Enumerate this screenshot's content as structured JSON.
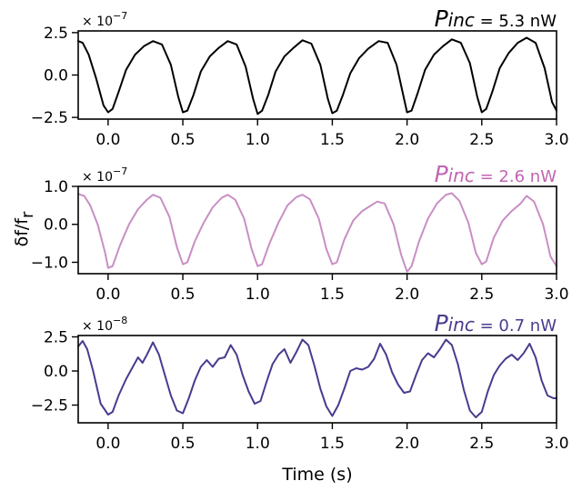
{
  "chart_data": [
    {
      "type": "line",
      "annotation": {
        "symbol": "P",
        "subscript": "inc",
        "value_text": " = 5.3 nW"
      },
      "multiplier": {
        "base": "× 10",
        "exponent": "−7"
      },
      "color": "#000000",
      "xlim": [
        -0.2,
        3.0
      ],
      "ylim": [
        -2.6,
        2.6
      ],
      "xticks": [
        0.0,
        0.5,
        1.0,
        1.5,
        2.0,
        2.5,
        3.0
      ],
      "xtick_labels": [
        "0.0",
        "0.5",
        "1.0",
        "1.5",
        "2.0",
        "2.5",
        "3.0"
      ],
      "yticks": [
        2.5,
        0.0,
        -2.5
      ],
      "ytick_labels": [
        "2.5",
        "0.0",
        "−2.5"
      ],
      "x": [
        -0.2,
        -0.17,
        -0.13,
        -0.08,
        -0.03,
        0.0,
        0.03,
        0.07,
        0.12,
        0.18,
        0.24,
        0.3,
        0.36,
        0.42,
        0.47,
        0.5,
        0.53,
        0.57,
        0.62,
        0.68,
        0.74,
        0.8,
        0.86,
        0.92,
        0.97,
        1.0,
        1.03,
        1.07,
        1.12,
        1.18,
        1.24,
        1.3,
        1.36,
        1.42,
        1.47,
        1.5,
        1.53,
        1.57,
        1.62,
        1.68,
        1.74,
        1.81,
        1.87,
        1.93,
        1.98,
        2.0,
        2.03,
        2.07,
        2.12,
        2.18,
        2.24,
        2.3,
        2.36,
        2.42,
        2.47,
        2.5,
        2.53,
        2.57,
        2.62,
        2.68,
        2.74,
        2.8,
        2.86,
        2.92,
        2.97,
        3.0
      ],
      "y": [
        2.0,
        1.9,
        1.2,
        -0.2,
        -1.8,
        -2.2,
        -2.0,
        -1.0,
        0.3,
        1.2,
        1.7,
        2.0,
        1.8,
        0.6,
        -1.3,
        -2.2,
        -2.1,
        -1.2,
        0.2,
        1.1,
        1.6,
        2.0,
        1.8,
        0.5,
        -1.4,
        -2.3,
        -2.1,
        -1.2,
        0.2,
        1.1,
        1.6,
        2.05,
        1.85,
        0.6,
        -1.4,
        -2.25,
        -2.1,
        -1.2,
        0.1,
        1.0,
        1.55,
        2.0,
        1.9,
        0.6,
        -1.4,
        -2.2,
        -2.1,
        -1.1,
        0.3,
        1.2,
        1.7,
        2.1,
        1.9,
        0.7,
        -1.3,
        -2.2,
        -2.0,
        -1.0,
        0.4,
        1.3,
        1.9,
        2.2,
        1.9,
        0.4,
        -1.6,
        -2.1
      ]
    },
    {
      "type": "line",
      "annotation": {
        "symbol": "P",
        "subscript": "inc",
        "value_text": " = 2.6 nW"
      },
      "multiplier": {
        "base": "× 10",
        "exponent": "−7"
      },
      "color": "#c98ec4",
      "annotation_color": "#c165b1",
      "xlim": [
        -0.2,
        3.0
      ],
      "ylim": [
        -1.3,
        1.0
      ],
      "xticks": [
        0.0,
        0.5,
        1.0,
        1.5,
        2.0,
        2.5,
        3.0
      ],
      "xtick_labels": [
        "0.0",
        "0.5",
        "1.0",
        "1.5",
        "2.0",
        "2.5",
        "3.0"
      ],
      "yticks": [
        1.0,
        0.0,
        -1.0
      ],
      "ytick_labels": [
        "1.0",
        "0.0",
        "−1.0"
      ],
      "ylabel": "δf/f",
      "ylabel_sub": "r",
      "x": [
        -0.2,
        -0.16,
        -0.12,
        -0.07,
        -0.02,
        0.0,
        0.03,
        0.08,
        0.14,
        0.2,
        0.26,
        0.3,
        0.35,
        0.41,
        0.46,
        0.5,
        0.53,
        0.58,
        0.64,
        0.7,
        0.76,
        0.8,
        0.85,
        0.91,
        0.96,
        1.0,
        1.03,
        1.08,
        1.14,
        1.2,
        1.26,
        1.3,
        1.35,
        1.41,
        1.46,
        1.5,
        1.53,
        1.58,
        1.64,
        1.7,
        1.76,
        1.8,
        1.85,
        1.91,
        1.96,
        2.0,
        2.03,
        2.08,
        2.14,
        2.2,
        2.26,
        2.3,
        2.35,
        2.41,
        2.46,
        2.5,
        2.53,
        2.58,
        2.64,
        2.7,
        2.76,
        2.8,
        2.85,
        2.91,
        2.96,
        3.0
      ],
      "y": [
        0.8,
        0.75,
        0.5,
        0.0,
        -0.75,
        -1.15,
        -1.1,
        -0.55,
        0.0,
        0.4,
        0.65,
        0.78,
        0.7,
        0.2,
        -0.6,
        -1.05,
        -1.0,
        -0.45,
        0.05,
        0.45,
        0.7,
        0.78,
        0.65,
        0.15,
        -0.65,
        -1.1,
        -1.05,
        -0.5,
        0.05,
        0.5,
        0.72,
        0.78,
        0.66,
        0.15,
        -0.65,
        -1.05,
        -1.0,
        -0.4,
        0.1,
        0.35,
        0.5,
        0.6,
        0.55,
        0.0,
        -0.8,
        -1.25,
        -1.1,
        -0.45,
        0.15,
        0.55,
        0.78,
        0.82,
        0.62,
        0.05,
        -0.75,
        -1.05,
        -0.98,
        -0.35,
        0.1,
        0.35,
        0.55,
        0.75,
        0.6,
        0.0,
        -0.85,
        -1.1
      ]
    },
    {
      "type": "line",
      "annotation": {
        "symbol": "P",
        "subscript": "inc",
        "value_text": " = 0.7 nW"
      },
      "multiplier": {
        "base": "× 10",
        "exponent": "−8"
      },
      "color": "#4b3a8e",
      "xlim": [
        -0.2,
        3.0
      ],
      "ylim": [
        -3.8,
        2.6
      ],
      "xticks": [
        0.0,
        0.5,
        1.0,
        1.5,
        2.0,
        2.5,
        3.0
      ],
      "xtick_labels": [
        "0.0",
        "0.5",
        "1.0",
        "1.5",
        "2.0",
        "2.5",
        "3.0"
      ],
      "yticks": [
        2.5,
        0.0,
        -2.5
      ],
      "ytick_labels": [
        "2.5",
        "0.0",
        "−2.5"
      ],
      "xlabel": "Time (s)",
      "x": [
        -0.2,
        -0.17,
        -0.14,
        -0.1,
        -0.05,
        0.0,
        0.03,
        0.07,
        0.12,
        0.16,
        0.2,
        0.23,
        0.26,
        0.3,
        0.34,
        0.38,
        0.42,
        0.46,
        0.5,
        0.54,
        0.58,
        0.62,
        0.66,
        0.7,
        0.74,
        0.78,
        0.82,
        0.86,
        0.9,
        0.94,
        0.98,
        1.02,
        1.06,
        1.1,
        1.14,
        1.18,
        1.22,
        1.26,
        1.3,
        1.34,
        1.38,
        1.42,
        1.46,
        1.5,
        1.54,
        1.58,
        1.62,
        1.66,
        1.7,
        1.74,
        1.78,
        1.82,
        1.86,
        1.9,
        1.94,
        1.98,
        2.02,
        2.06,
        2.1,
        2.14,
        2.18,
        2.22,
        2.26,
        2.3,
        2.34,
        2.38,
        2.42,
        2.46,
        2.5,
        2.54,
        2.58,
        2.62,
        2.66,
        2.7,
        2.74,
        2.78,
        2.82,
        2.86,
        2.9,
        2.94,
        2.98,
        3.0
      ],
      "y": [
        1.8,
        2.2,
        1.6,
        0.0,
        -2.4,
        -3.2,
        -3.0,
        -1.8,
        -0.6,
        0.2,
        1.0,
        0.6,
        1.2,
        2.1,
        1.2,
        -0.3,
        -1.8,
        -2.9,
        -3.1,
        -2.0,
        -0.7,
        0.3,
        0.8,
        0.3,
        0.9,
        1.0,
        1.9,
        1.2,
        -0.3,
        -1.5,
        -2.4,
        -2.2,
        -0.8,
        0.5,
        1.2,
        1.6,
        0.6,
        1.4,
        2.3,
        1.9,
        0.4,
        -1.3,
        -2.6,
        -3.3,
        -2.5,
        -1.3,
        0.0,
        0.2,
        0.1,
        0.3,
        0.9,
        2.0,
        1.2,
        -0.1,
        -1.0,
        -1.6,
        -1.5,
        -0.3,
        0.8,
        1.3,
        1.0,
        1.6,
        2.3,
        1.9,
        0.5,
        -1.4,
        -2.9,
        -3.4,
        -3.0,
        -1.5,
        -0.3,
        0.4,
        0.9,
        1.2,
        0.8,
        1.3,
        2.0,
        1.0,
        -0.7,
        -1.8,
        -2.0,
        -2.0
      ]
    }
  ]
}
